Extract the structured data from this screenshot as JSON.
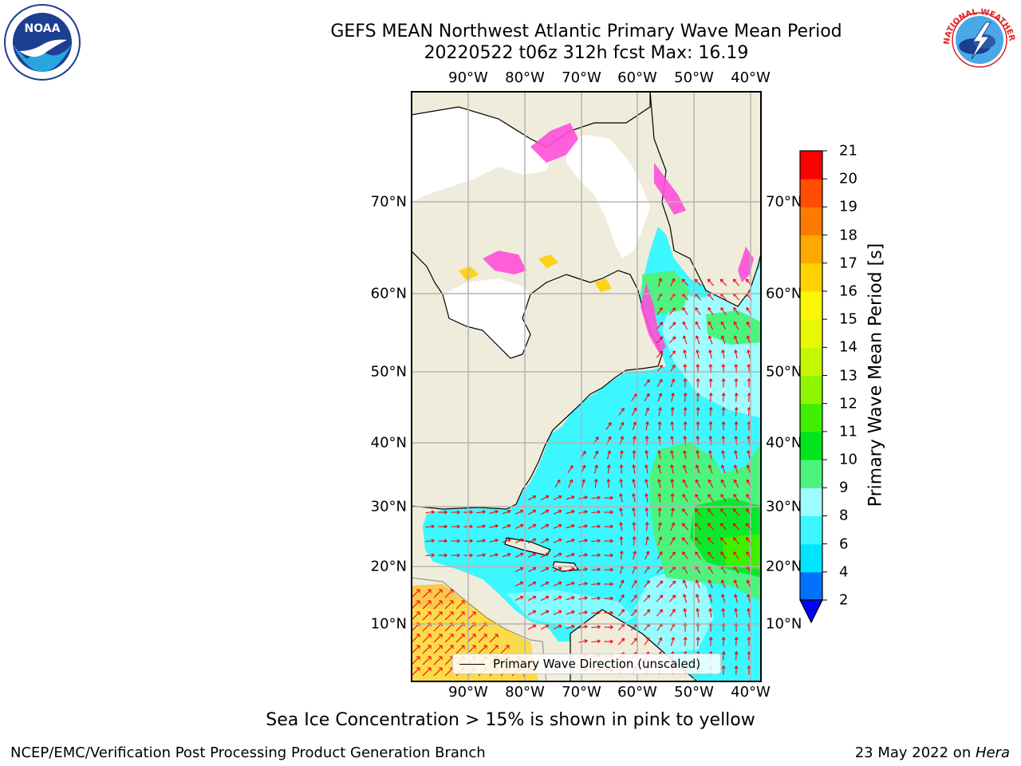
{
  "title": {
    "line1": "GEFS MEAN Northwest Atlantic Primary Wave Mean Period",
    "line2": "20220522 t06z 312h fcst   Max: 16.19"
  },
  "logos": {
    "left": {
      "icon": "noaa-logo",
      "text": "NOAA"
    },
    "right": {
      "icon": "national-weather-service-logo",
      "text": "NATIONAL WEATHER SERVICE"
    }
  },
  "map": {
    "lon_ticks": [
      "90°W",
      "80°W",
      "70°W",
      "60°W",
      "50°W",
      "40°W"
    ],
    "lat_ticks": [
      "70°N",
      "60°N",
      "50°N",
      "40°N",
      "30°N",
      "20°N",
      "10°N"
    ],
    "extent": {
      "lon": [
        -100,
        -38.5
      ],
      "lat": [
        2,
        80
      ]
    },
    "colors": {
      "land": "#efecdb",
      "frame": "#000000",
      "grid": "#b4b4b4",
      "arrow": "#ff0000"
    }
  },
  "colorbar": {
    "title": "Primary Wave Mean Period [s]",
    "levels": [
      "2",
      "4",
      "6",
      "8",
      "9",
      "10",
      "11",
      "12",
      "13",
      "14",
      "15",
      "16",
      "17",
      "18",
      "19",
      "20",
      "21"
    ],
    "colors": [
      "#0072ff",
      "#00e5ff",
      "#3cf7ff",
      "#9ffdff",
      "#4cf37f",
      "#00e51c",
      "#3fef00",
      "#8ff500",
      "#c4f700",
      "#e9fa00",
      "#fbf800",
      "#ffd200",
      "#ffa800",
      "#ff7b00",
      "#ff4e00",
      "#ff0000"
    ],
    "under_color": "#0000ff"
  },
  "legend": {
    "label": "Primary Wave Direction (unscaled)"
  },
  "caption": "Sea Ice Concentration > 15% is shown in pink to yellow",
  "footer": {
    "left": "NCEP/EMC/Verification Post Processing Product Generation Branch",
    "right_prefix": "23 May 2022 on ",
    "right_machine": "Hera"
  }
}
